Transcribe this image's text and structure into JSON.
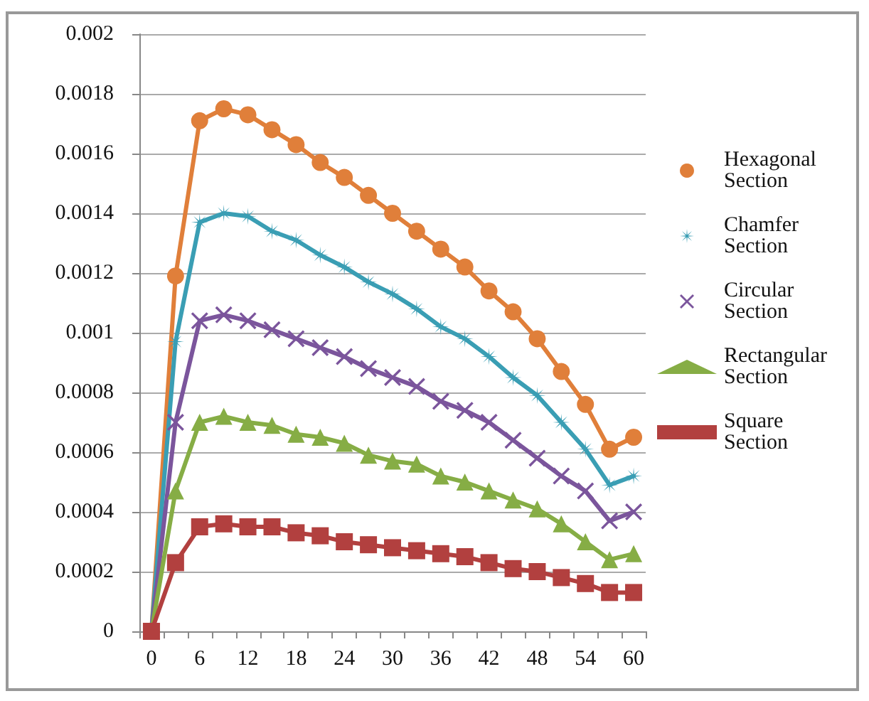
{
  "chart_data": {
    "type": "line",
    "categories": [
      "0",
      null,
      "6",
      null,
      "12",
      null,
      "18",
      null,
      "24",
      null,
      "30",
      null,
      "36",
      null,
      "42",
      null,
      "48",
      null,
      "54",
      null,
      "60"
    ],
    "ylim": [
      0,
      0.002
    ],
    "yticks": [
      0,
      0.0002,
      0.0004,
      0.0006,
      0.0008,
      0.001,
      0.0012,
      0.0014,
      0.0016,
      0.0018,
      0.002
    ],
    "grid": "y",
    "legend": "right",
    "series": [
      {
        "name": "Hexagonal Section",
        "color": "#e07f3a",
        "marker": "circle",
        "values": [
          0,
          0.00119,
          0.00171,
          0.00175,
          0.00173,
          0.00168,
          0.00163,
          0.00157,
          0.00152,
          0.00146,
          0.0014,
          0.00134,
          0.00128,
          0.00122,
          0.00114,
          0.00107,
          0.00098,
          0.00087,
          0.00076,
          0.00061,
          0.00065
        ]
      },
      {
        "name": "Chamfer Section",
        "color": "#3a9eb4",
        "marker": "star",
        "values": [
          0,
          0.00097,
          0.00137,
          0.0014,
          0.00139,
          0.00134,
          0.00131,
          0.00126,
          0.00122,
          0.00117,
          0.00113,
          0.00108,
          0.00102,
          0.00098,
          0.00092,
          0.00085,
          0.00079,
          0.0007,
          0.00061,
          0.00049,
          0.00052
        ]
      },
      {
        "name": "Circular Section",
        "color": "#7b559c",
        "marker": "cross",
        "values": [
          0,
          0.0007,
          0.00104,
          0.00106,
          0.00104,
          0.00101,
          0.00098,
          0.00095,
          0.00092,
          0.00088,
          0.00085,
          0.00082,
          0.00077,
          0.00074,
          0.0007,
          0.00064,
          0.00058,
          0.00052,
          0.00047,
          0.00037,
          0.0004
        ]
      },
      {
        "name": "Rectangular Section",
        "color": "#86ad45",
        "marker": "triangle",
        "values": [
          0,
          0.00047,
          0.0007,
          0.00072,
          0.0007,
          0.00069,
          0.00066,
          0.00065,
          0.00063,
          0.00059,
          0.00057,
          0.00056,
          0.00052,
          0.0005,
          0.00047,
          0.00044,
          0.00041,
          0.00036,
          0.0003,
          0.00024,
          0.00026
        ]
      },
      {
        "name": "Square Section",
        "color": "#b2403f",
        "marker": "square",
        "values": [
          0,
          0.00023,
          0.00035,
          0.00036,
          0.00035,
          0.00035,
          0.00033,
          0.00032,
          0.0003,
          0.00029,
          0.00028,
          0.00027,
          0.00026,
          0.00025,
          0.00023,
          0.00021,
          0.0002,
          0.00018,
          0.00016,
          0.00013,
          0.00013
        ]
      }
    ]
  }
}
